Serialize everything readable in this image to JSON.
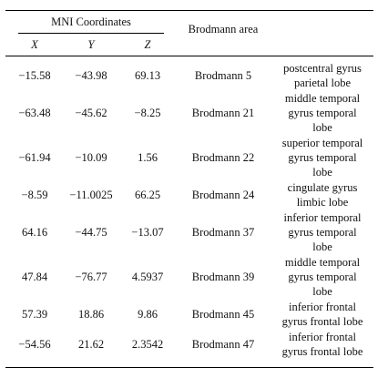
{
  "header": {
    "mni_label": "MNI Coordinates",
    "brodmann_label": "Brodmann area",
    "x_label": "X",
    "y_label": "Y",
    "z_label": "Z"
  },
  "rows": [
    {
      "x": "−15.58",
      "y": "−43.98",
      "z": "69.13",
      "area": "Brodmann 5",
      "region": [
        "postcentral gyrus",
        "parietal lobe"
      ]
    },
    {
      "x": "−63.48",
      "y": "−45.62",
      "z": "−8.25",
      "area": "Brodmann 21",
      "region": [
        "middle temporal",
        "gyrus temporal",
        "lobe"
      ]
    },
    {
      "x": "−61.94",
      "y": "−10.09",
      "z": "1.56",
      "area": "Brodmann 22",
      "region": [
        "superior temporal",
        "gyrus temporal",
        "lobe"
      ]
    },
    {
      "x": "−8.59",
      "y": "−11.0025",
      "z": "66.25",
      "area": "Brodmann 24",
      "region": [
        "cingulate gyrus",
        "limbic lobe"
      ]
    },
    {
      "x": "64.16",
      "y": "−44.75",
      "z": "−13.07",
      "area": "Brodmann 37",
      "region": [
        "inferior temporal",
        "gyrus temporal",
        "lobe"
      ]
    },
    {
      "x": "47.84",
      "y": "−76.77",
      "z": "4.5937",
      "area": "Brodmann 39",
      "region": [
        "middle temporal",
        "gyrus temporal",
        "lobe"
      ]
    },
    {
      "x": "57.39",
      "y": "18.86",
      "z": "9.86",
      "area": "Brodmann 45",
      "region": [
        "inferior frontal",
        "gyrus frontal lobe"
      ]
    },
    {
      "x": "−54.56",
      "y": "21.62",
      "z": "2.3542",
      "area": "Brodmann 47",
      "region": [
        "inferior frontal",
        "gyrus frontal lobe"
      ]
    }
  ]
}
